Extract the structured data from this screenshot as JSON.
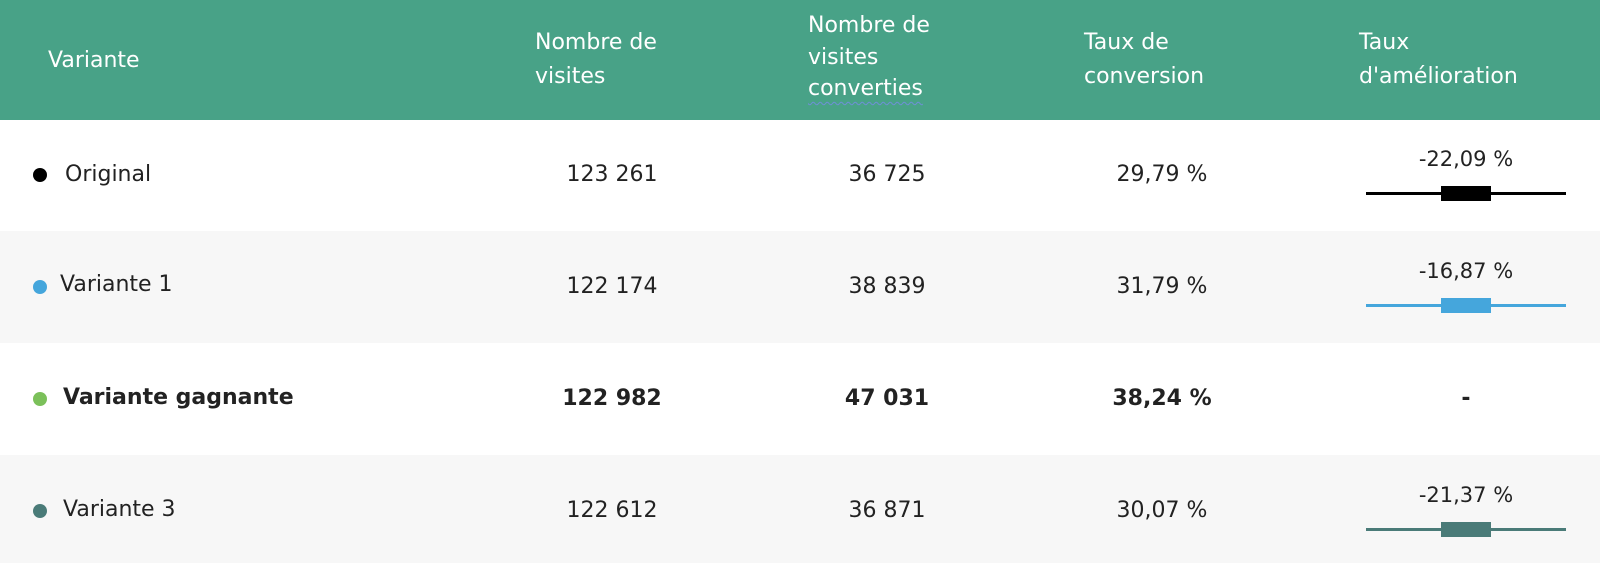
{
  "header": {
    "variant": "Variante",
    "visits": [
      "Nombre de",
      "visites"
    ],
    "converted": [
      "Nombre de",
      "visites",
      "converties"
    ],
    "rate": [
      "Taux de",
      "conversion"
    ],
    "improvement": [
      "Taux",
      "d'amélioration"
    ]
  },
  "rows": [
    {
      "name": "Original",
      "dot_color": "#000000",
      "visits": "123 261",
      "converted": "36 725",
      "rate": "29,79 %",
      "improvement": "-22,09 %",
      "bar_color": "#000000",
      "winner": false
    },
    {
      "name": "Variante 1",
      "dot_color": "#45a6dc",
      "visits": "122 174",
      "converted": "38 839",
      "rate": "31,79 %",
      "improvement": "-16,87 %",
      "bar_color": "#45a6dc",
      "winner": false
    },
    {
      "name": "Variante gagnante",
      "dot_color": "#7bc05a",
      "visits": "122 982",
      "converted": "47 031",
      "rate": "38,24 %",
      "improvement": "-",
      "bar_color": "",
      "winner": true
    },
    {
      "name": "Variante 3",
      "dot_color": "#4a7b78",
      "visits": "122 612",
      "converted": "36 871",
      "rate": "30,07 %",
      "improvement": "-21,37 %",
      "bar_color": "#4a7b78",
      "winner": false
    }
  ]
}
